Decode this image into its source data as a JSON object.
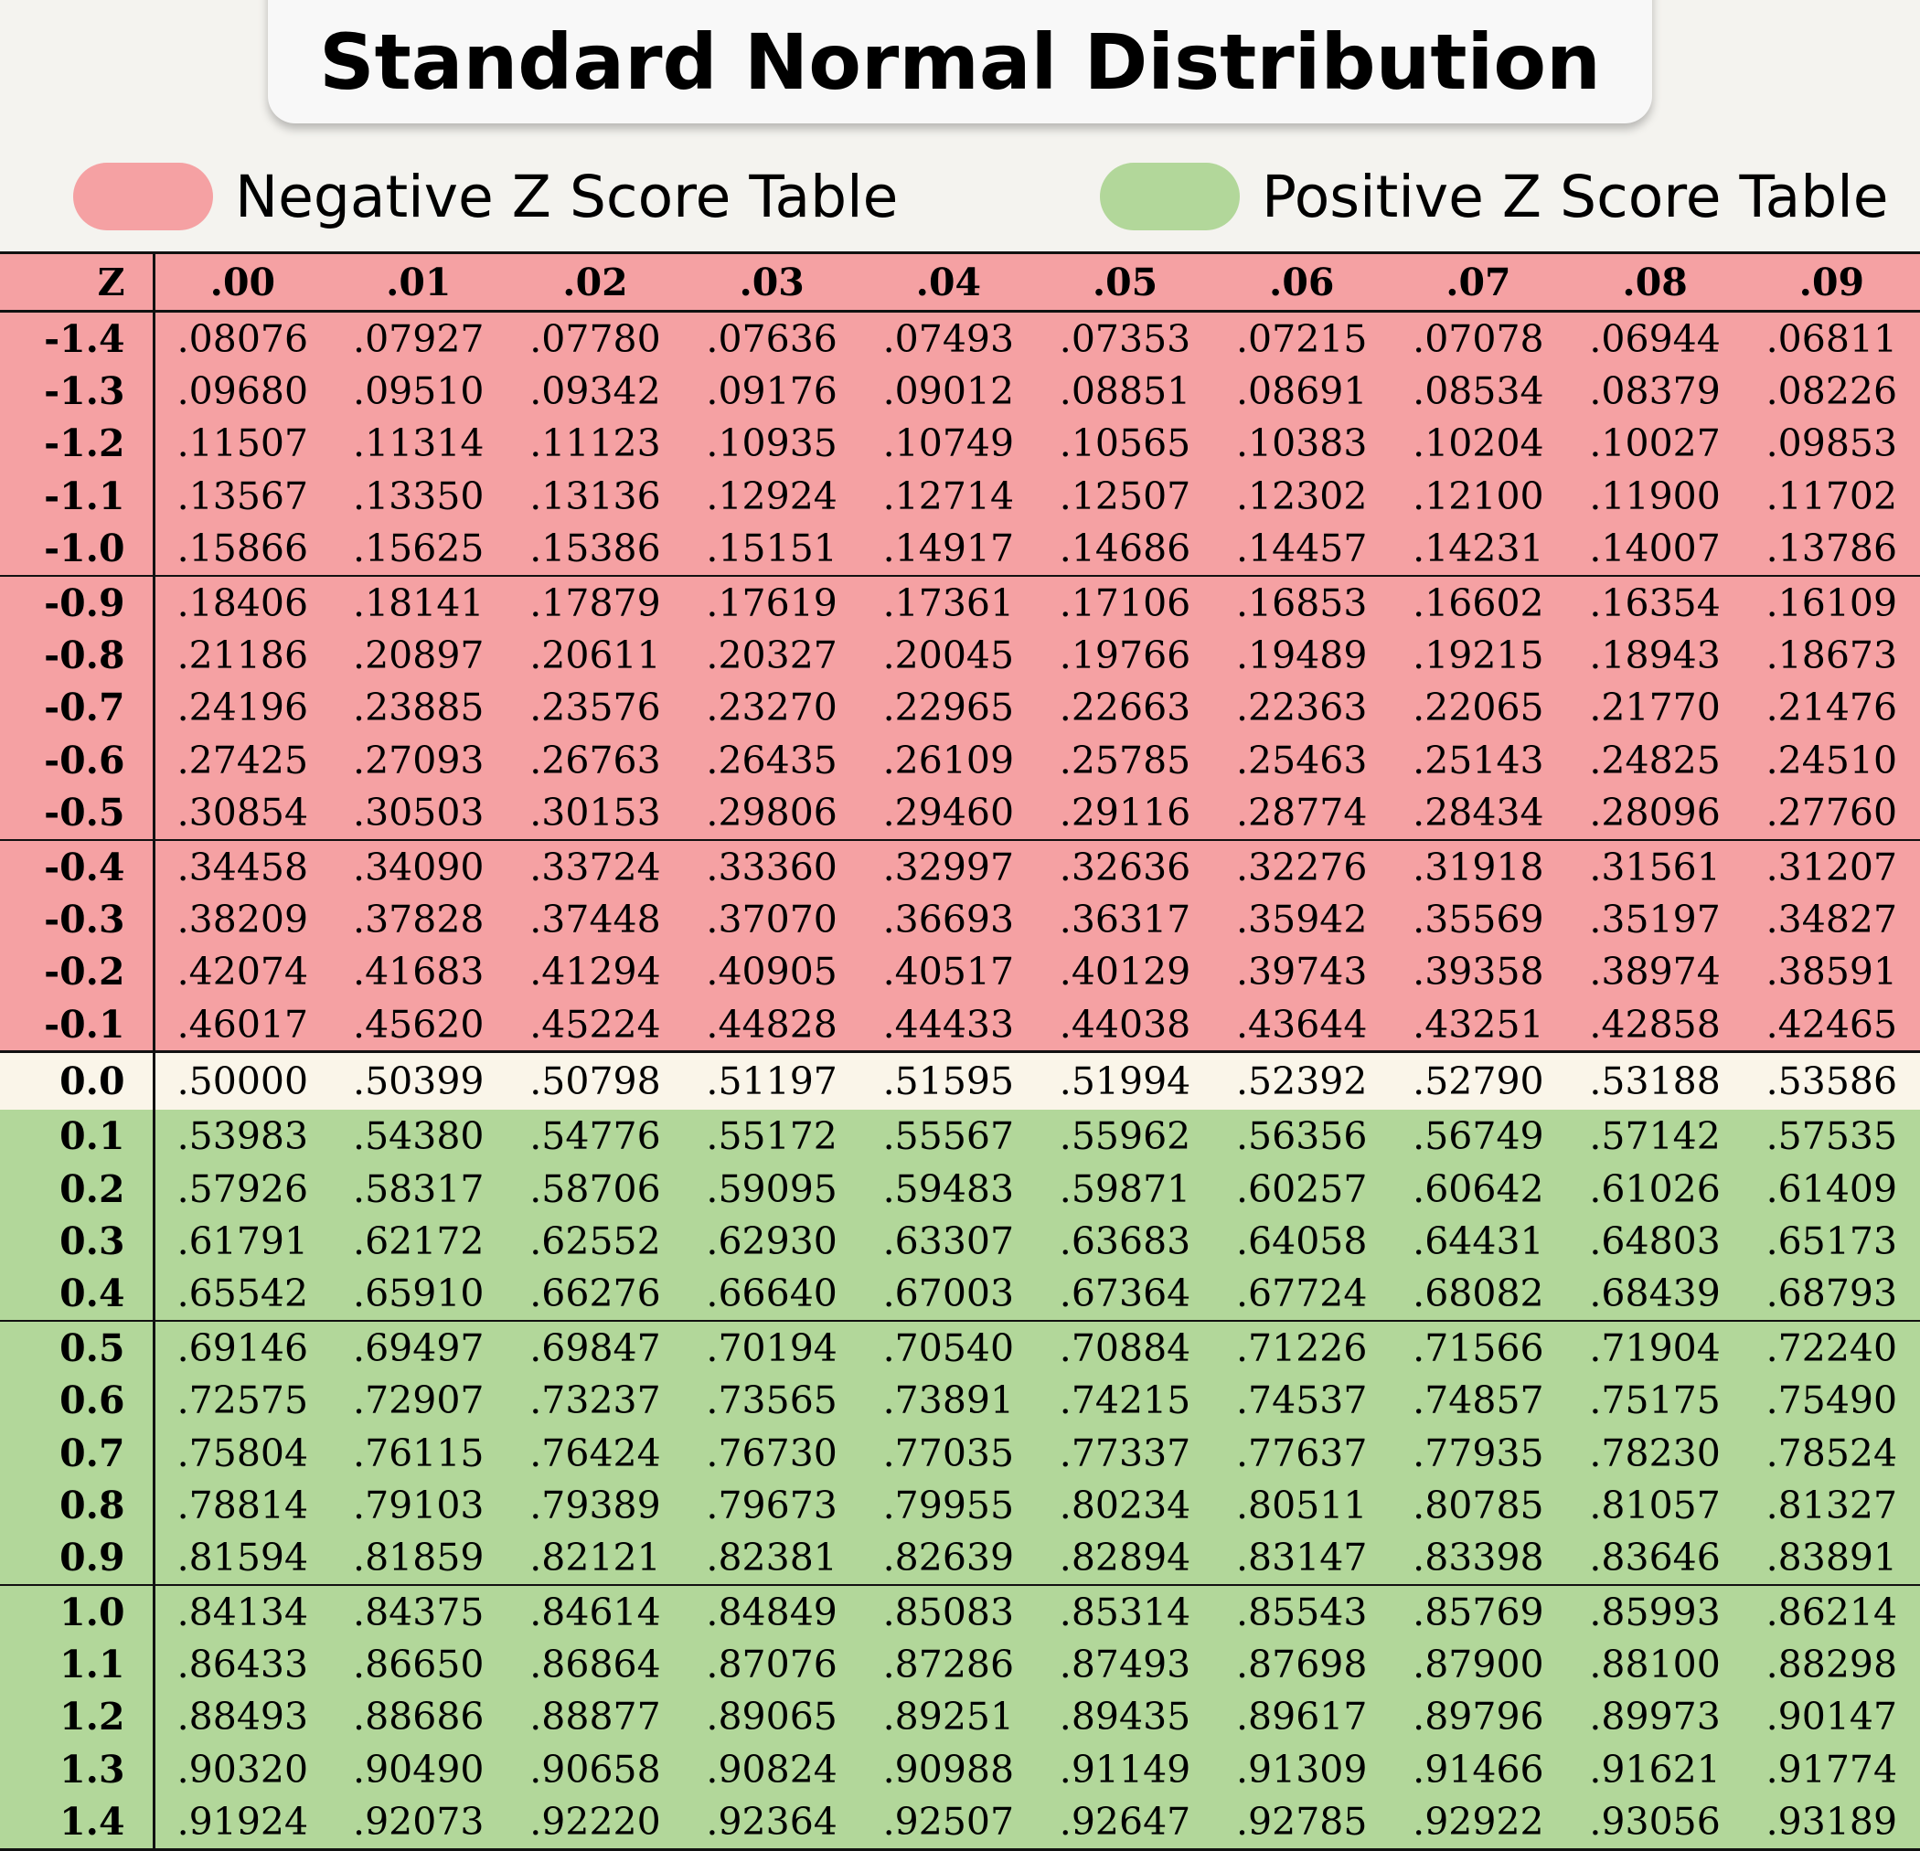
{
  "title": "Standard Normal Distribution",
  "legend": {
    "negative": {
      "label": "Negative Z Score Table",
      "color": "#f5a1a3"
    },
    "positive": {
      "label": "Positive Z Score Table",
      "color": "#b2d79a"
    }
  },
  "zero_row_color": "#faf5e9",
  "table": {
    "headers": [
      "Z",
      ".00",
      ".01",
      ".02",
      ".03",
      ".04",
      ".05",
      ".06",
      ".07",
      ".08",
      ".09"
    ],
    "rows": [
      {
        "z": "-1.4",
        "values": [
          ".08076",
          ".07927",
          ".07780",
          ".07636",
          ".07493",
          ".07353",
          ".07215",
          ".07078",
          ".06944",
          ".06811"
        ]
      },
      {
        "z": "-1.3",
        "values": [
          ".09680",
          ".09510",
          ".09342",
          ".09176",
          ".09012",
          ".08851",
          ".08691",
          ".08534",
          ".08379",
          ".08226"
        ]
      },
      {
        "z": "-1.2",
        "values": [
          ".11507",
          ".11314",
          ".11123",
          ".10935",
          ".10749",
          ".10565",
          ".10383",
          ".10204",
          ".10027",
          ".09853"
        ]
      },
      {
        "z": "-1.1",
        "values": [
          ".13567",
          ".13350",
          ".13136",
          ".12924",
          ".12714",
          ".12507",
          ".12302",
          ".12100",
          ".11900",
          ".11702"
        ]
      },
      {
        "z": "-1.0",
        "values": [
          ".15866",
          ".15625",
          ".15386",
          ".15151",
          ".14917",
          ".14686",
          ".14457",
          ".14231",
          ".14007",
          ".13786"
        ]
      },
      {
        "z": "-0.9",
        "values": [
          ".18406",
          ".18141",
          ".17879",
          ".17619",
          ".17361",
          ".17106",
          ".16853",
          ".16602",
          ".16354",
          ".16109"
        ]
      },
      {
        "z": "-0.8",
        "values": [
          ".21186",
          ".20897",
          ".20611",
          ".20327",
          ".20045",
          ".19766",
          ".19489",
          ".19215",
          ".18943",
          ".18673"
        ]
      },
      {
        "z": "-0.7",
        "values": [
          ".24196",
          ".23885",
          ".23576",
          ".23270",
          ".22965",
          ".22663",
          ".22363",
          ".22065",
          ".21770",
          ".21476"
        ]
      },
      {
        "z": "-0.6",
        "values": [
          ".27425",
          ".27093",
          ".26763",
          ".26435",
          ".26109",
          ".25785",
          ".25463",
          ".25143",
          ".24825",
          ".24510"
        ]
      },
      {
        "z": "-0.5",
        "values": [
          ".30854",
          ".30503",
          ".30153",
          ".29806",
          ".29460",
          ".29116",
          ".28774",
          ".28434",
          ".28096",
          ".27760"
        ]
      },
      {
        "z": "-0.4",
        "values": [
          ".34458",
          ".34090",
          ".33724",
          ".33360",
          ".32997",
          ".32636",
          ".32276",
          ".31918",
          ".31561",
          ".31207"
        ]
      },
      {
        "z": "-0.3",
        "values": [
          ".38209",
          ".37828",
          ".37448",
          ".37070",
          ".36693",
          ".36317",
          ".35942",
          ".35569",
          ".35197",
          ".34827"
        ]
      },
      {
        "z": "-0.2",
        "values": [
          ".42074",
          ".41683",
          ".41294",
          ".40905",
          ".40517",
          ".40129",
          ".39743",
          ".39358",
          ".38974",
          ".38591"
        ]
      },
      {
        "z": "-0.1",
        "values": [
          ".46017",
          ".45620",
          ".45224",
          ".44828",
          ".44433",
          ".44038",
          ".43644",
          ".43251",
          ".42858",
          ".42465"
        ]
      },
      {
        "z": "0.0",
        "values": [
          ".50000",
          ".50399",
          ".50798",
          ".51197",
          ".51595",
          ".51994",
          ".52392",
          ".52790",
          ".53188",
          ".53586"
        ]
      },
      {
        "z": "0.1",
        "values": [
          ".53983",
          ".54380",
          ".54776",
          ".55172",
          ".55567",
          ".55962",
          ".56356",
          ".56749",
          ".57142",
          ".57535"
        ]
      },
      {
        "z": "0.2",
        "values": [
          ".57926",
          ".58317",
          ".58706",
          ".59095",
          ".59483",
          ".59871",
          ".60257",
          ".60642",
          ".61026",
          ".61409"
        ]
      },
      {
        "z": "0.3",
        "values": [
          ".61791",
          ".62172",
          ".62552",
          ".62930",
          ".63307",
          ".63683",
          ".64058",
          ".64431",
          ".64803",
          ".65173"
        ]
      },
      {
        "z": "0.4",
        "values": [
          ".65542",
          ".65910",
          ".66276",
          ".66640",
          ".67003",
          ".67364",
          ".67724",
          ".68082",
          ".68439",
          ".68793"
        ]
      },
      {
        "z": "0.5",
        "values": [
          ".69146",
          ".69497",
          ".69847",
          ".70194",
          ".70540",
          ".70884",
          ".71226",
          ".71566",
          ".71904",
          ".72240"
        ]
      },
      {
        "z": "0.6",
        "values": [
          ".72575",
          ".72907",
          ".73237",
          ".73565",
          ".73891",
          ".74215",
          ".74537",
          ".74857",
          ".75175",
          ".75490"
        ]
      },
      {
        "z": "0.7",
        "values": [
          ".75804",
          ".76115",
          ".76424",
          ".76730",
          ".77035",
          ".77337",
          ".77637",
          ".77935",
          ".78230",
          ".78524"
        ]
      },
      {
        "z": "0.8",
        "values": [
          ".78814",
          ".79103",
          ".79389",
          ".79673",
          ".79955",
          ".80234",
          ".80511",
          ".80785",
          ".81057",
          ".81327"
        ]
      },
      {
        "z": "0.9",
        "values": [
          ".81594",
          ".81859",
          ".82121",
          ".82381",
          ".82639",
          ".82894",
          ".83147",
          ".83398",
          ".83646",
          ".83891"
        ]
      },
      {
        "z": "1.0",
        "values": [
          ".84134",
          ".84375",
          ".84614",
          ".84849",
          ".85083",
          ".85314",
          ".85543",
          ".85769",
          ".85993",
          ".86214"
        ]
      },
      {
        "z": "1.1",
        "values": [
          ".86433",
          ".86650",
          ".86864",
          ".87076",
          ".87286",
          ".87493",
          ".87698",
          ".87900",
          ".88100",
          ".88298"
        ]
      },
      {
        "z": "1.2",
        "values": [
          ".88493",
          ".88686",
          ".88877",
          ".89065",
          ".89251",
          ".89435",
          ".89617",
          ".89796",
          ".89973",
          ".90147"
        ]
      },
      {
        "z": "1.3",
        "values": [
          ".90320",
          ".90490",
          ".90658",
          ".90824",
          ".90988",
          ".91149",
          ".91309",
          ".91466",
          ".91621",
          ".91774"
        ]
      },
      {
        "z": "1.4",
        "values": [
          ".91924",
          ".92073",
          ".92220",
          ".92364",
          ".92507",
          ".92647",
          ".92785",
          ".92922",
          ".93056",
          ".93189"
        ]
      }
    ]
  }
}
